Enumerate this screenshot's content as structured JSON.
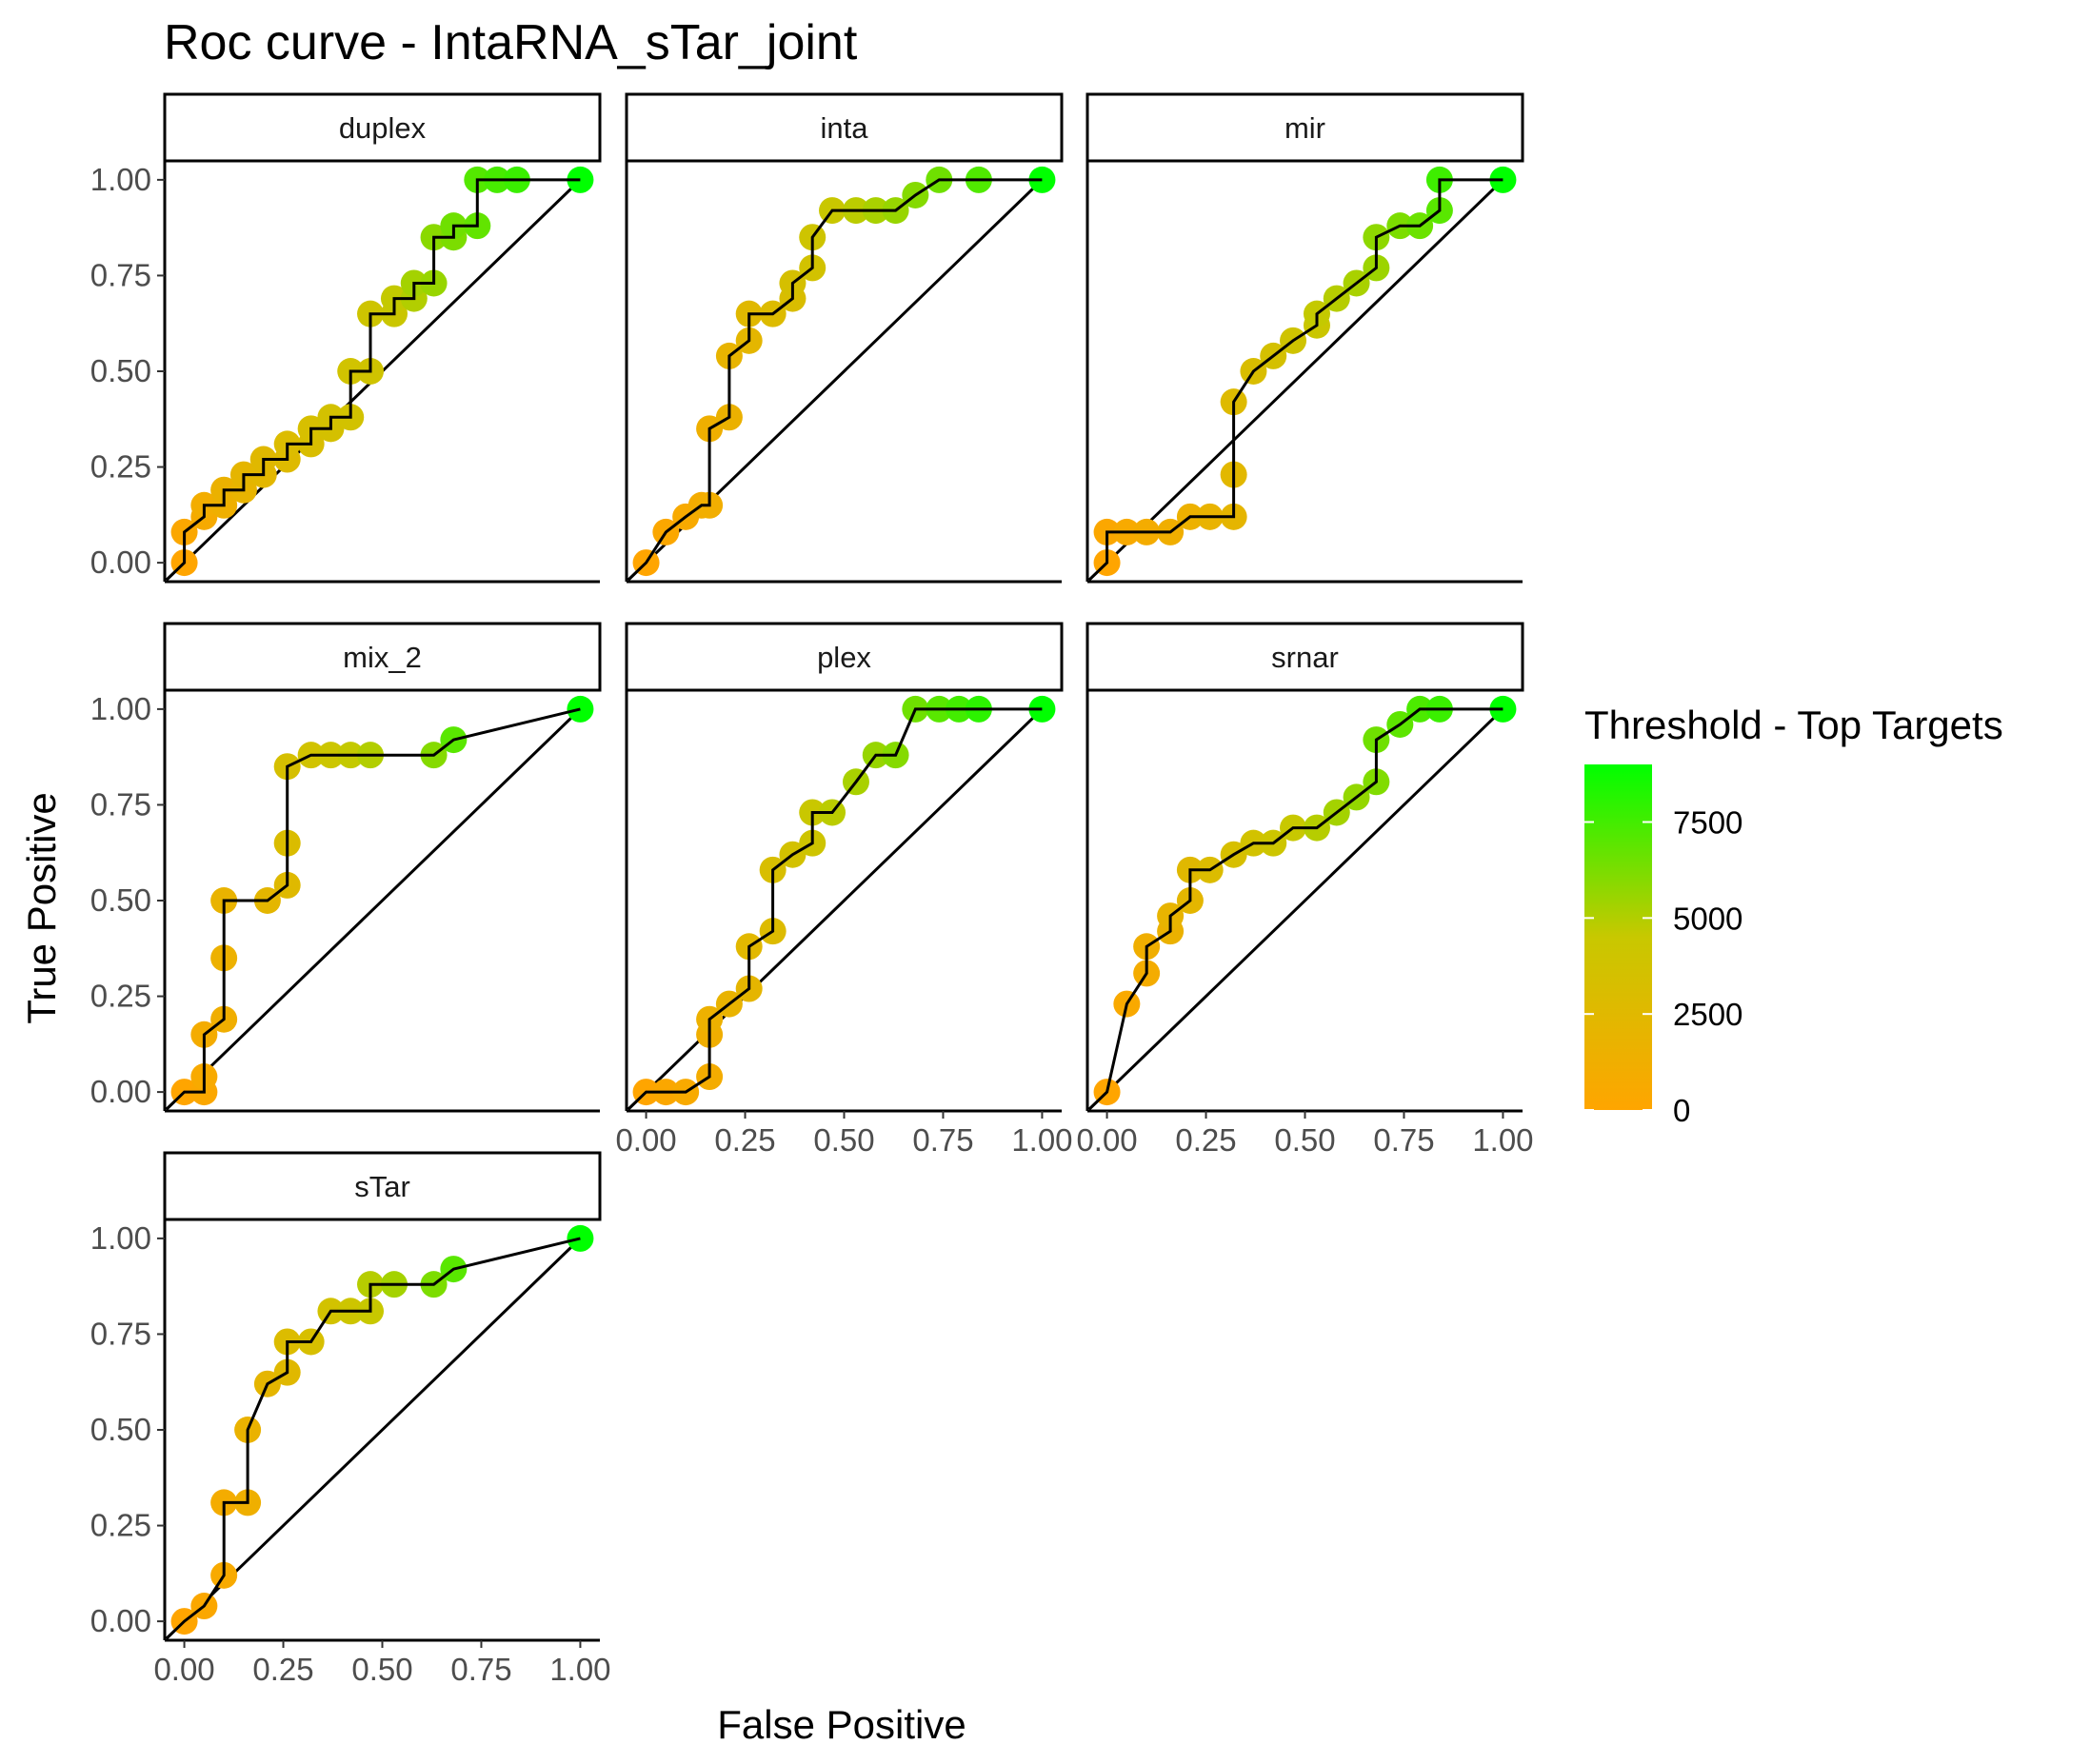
{
  "chart_data": {
    "type": "line",
    "title": "Roc curve - IntaRNA_sTar_joint",
    "xlabel": "False Positive",
    "ylabel": "True Positive",
    "xlim": [
      0,
      1
    ],
    "ylim": [
      0,
      1
    ],
    "x_ticks": [
      "0.00",
      "0.25",
      "0.50",
      "0.75",
      "1.00"
    ],
    "y_ticks": [
      "0.00",
      "0.25",
      "0.50",
      "0.75",
      "1.00"
    ],
    "grid": false,
    "legend": {
      "title": "Threshold - Top Targets",
      "position": "right",
      "min": 0,
      "max": 9000,
      "ticks": [
        "0",
        "2500",
        "5000",
        "7500"
      ],
      "low_color": "#ffa500",
      "mid_color": "#c8c800",
      "high_color": "#00ff00"
    },
    "reference_line": "diagonal",
    "panels": [
      {
        "name": "duplex",
        "x": [
          0,
          0,
          0.05,
          0.05,
          0.1,
          0.1,
          0.15,
          0.15,
          0.2,
          0.2,
          0.26,
          0.26,
          0.32,
          0.32,
          0.37,
          0.37,
          0.42,
          0.42,
          0.47,
          0.47,
          0.53,
          0.53,
          0.58,
          0.58,
          0.63,
          0.63,
          0.68,
          0.68,
          0.74,
          0.74,
          0.79,
          0.84,
          1.0
        ],
        "y": [
          0,
          0.08,
          0.12,
          0.15,
          0.15,
          0.19,
          0.19,
          0.23,
          0.23,
          0.27,
          0.27,
          0.31,
          0.31,
          0.35,
          0.35,
          0.38,
          0.38,
          0.5,
          0.5,
          0.65,
          0.65,
          0.69,
          0.69,
          0.73,
          0.73,
          0.85,
          0.85,
          0.88,
          0.88,
          1.0,
          1.0,
          1.0,
          1.0
        ],
        "threshold": [
          0,
          300,
          700,
          1000,
          1300,
          1600,
          1900,
          2100,
          2300,
          2500,
          2700,
          2900,
          3100,
          3300,
          3500,
          3600,
          3700,
          3800,
          3900,
          4000,
          4300,
          4600,
          5000,
          5300,
          5600,
          5900,
          6200,
          6500,
          6800,
          7100,
          7400,
          7700,
          9000
        ]
      },
      {
        "name": "inta",
        "x": [
          0,
          0.05,
          0.1,
          0.14,
          0.16,
          0.16,
          0.21,
          0.21,
          0.26,
          0.26,
          0.32,
          0.37,
          0.37,
          0.42,
          0.42,
          0.47,
          0.53,
          0.58,
          0.63,
          0.68,
          0.74,
          0.84,
          1.0
        ],
        "y": [
          0,
          0.08,
          0.12,
          0.15,
          0.15,
          0.35,
          0.38,
          0.54,
          0.58,
          0.65,
          0.65,
          0.69,
          0.73,
          0.77,
          0.85,
          0.92,
          0.92,
          0.92,
          0.92,
          0.96,
          1.0,
          1.0,
          1.0
        ],
        "threshold": [
          0,
          300,
          600,
          900,
          1100,
          1300,
          1600,
          1900,
          2200,
          2500,
          2800,
          3100,
          3400,
          3700,
          4000,
          4400,
          4800,
          5200,
          5600,
          6000,
          6500,
          7200,
          9000
        ]
      },
      {
        "name": "mir",
        "x": [
          0,
          0,
          0.05,
          0.1,
          0.16,
          0.21,
          0.26,
          0.32,
          0.32,
          0.32,
          0.37,
          0.42,
          0.47,
          0.53,
          0.53,
          0.58,
          0.63,
          0.68,
          0.68,
          0.74,
          0.79,
          0.84,
          0.84,
          1.0
        ],
        "y": [
          0,
          0.08,
          0.08,
          0.08,
          0.08,
          0.12,
          0.12,
          0.12,
          0.23,
          0.42,
          0.5,
          0.54,
          0.58,
          0.62,
          0.65,
          0.69,
          0.73,
          0.77,
          0.85,
          0.88,
          0.88,
          0.92,
          1.0,
          1.0
        ],
        "threshold": [
          0,
          300,
          600,
          900,
          1200,
          1500,
          1800,
          2100,
          2400,
          2700,
          3100,
          3500,
          3900,
          4300,
          4600,
          4900,
          5200,
          5500,
          5800,
          6200,
          6600,
          7000,
          7600,
          9000
        ]
      },
      {
        "name": "mix_2",
        "x": [
          0,
          0.05,
          0.05,
          0.05,
          0.1,
          0.1,
          0.1,
          0.21,
          0.26,
          0.26,
          0.26,
          0.32,
          0.37,
          0.42,
          0.47,
          0.63,
          0.68,
          1.0
        ],
        "y": [
          0,
          0,
          0.04,
          0.15,
          0.19,
          0.35,
          0.5,
          0.5,
          0.54,
          0.65,
          0.85,
          0.88,
          0.88,
          0.88,
          0.88,
          0.88,
          0.92,
          1.0
        ],
        "threshold": [
          0,
          300,
          600,
          900,
          1200,
          1500,
          1800,
          2200,
          2600,
          3000,
          3400,
          3800,
          4200,
          4600,
          5000,
          6000,
          7000,
          9000
        ]
      },
      {
        "name": "plex",
        "x": [
          0,
          0.05,
          0.1,
          0.16,
          0.16,
          0.16,
          0.21,
          0.26,
          0.26,
          0.32,
          0.32,
          0.37,
          0.42,
          0.42,
          0.47,
          0.53,
          0.58,
          0.63,
          0.68,
          0.74,
          0.79,
          0.84,
          1.0
        ],
        "y": [
          0,
          0,
          0,
          0.04,
          0.15,
          0.19,
          0.23,
          0.27,
          0.38,
          0.42,
          0.58,
          0.62,
          0.65,
          0.73,
          0.73,
          0.81,
          0.88,
          0.88,
          1.0,
          1.0,
          1.0,
          1.0,
          1.0
        ],
        "threshold": [
          0,
          300,
          600,
          900,
          1200,
          1500,
          1800,
          2100,
          2400,
          2800,
          3200,
          3600,
          4000,
          4400,
          4800,
          5200,
          5600,
          6000,
          6500,
          7000,
          7500,
          8000,
          9000
        ]
      },
      {
        "name": "srnar",
        "x": [
          0,
          0.05,
          0.1,
          0.1,
          0.16,
          0.16,
          0.21,
          0.21,
          0.26,
          0.32,
          0.37,
          0.42,
          0.47,
          0.53,
          0.58,
          0.63,
          0.68,
          0.68,
          0.74,
          0.79,
          0.84,
          1.0
        ],
        "y": [
          0,
          0.23,
          0.31,
          0.38,
          0.42,
          0.46,
          0.5,
          0.58,
          0.58,
          0.62,
          0.65,
          0.65,
          0.69,
          0.69,
          0.73,
          0.77,
          0.81,
          0.92,
          0.96,
          1.0,
          1.0,
          1.0
        ],
        "threshold": [
          0,
          500,
          900,
          1200,
          1600,
          1900,
          2200,
          2500,
          2900,
          3300,
          3700,
          4100,
          4500,
          4900,
          5300,
          5700,
          6100,
          6500,
          6900,
          7300,
          7700,
          9000
        ]
      },
      {
        "name": "sTar",
        "x": [
          0,
          0.05,
          0.1,
          0.1,
          0.16,
          0.16,
          0.21,
          0.26,
          0.26,
          0.32,
          0.37,
          0.42,
          0.47,
          0.47,
          0.53,
          0.63,
          0.68,
          1.0
        ],
        "y": [
          0,
          0.04,
          0.12,
          0.31,
          0.31,
          0.5,
          0.62,
          0.65,
          0.73,
          0.73,
          0.81,
          0.81,
          0.81,
          0.88,
          0.88,
          0.88,
          0.92,
          1.0
        ],
        "threshold": [
          0,
          300,
          600,
          900,
          1300,
          1700,
          2100,
          2500,
          2900,
          3300,
          3700,
          4100,
          4500,
          4900,
          5300,
          6200,
          7000,
          9000
        ]
      }
    ]
  }
}
